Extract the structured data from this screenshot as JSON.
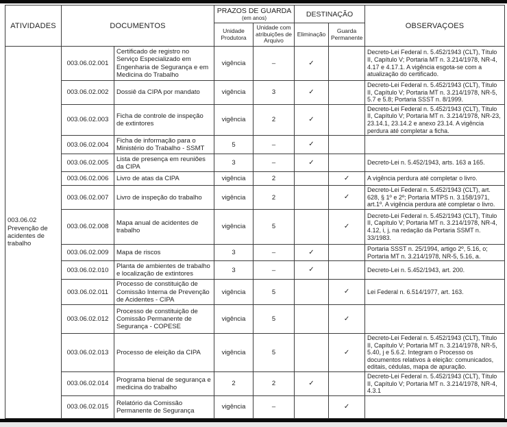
{
  "table": {
    "headers": {
      "atividades": "ATIVIDADES",
      "documentos": "DOCUMENTOS",
      "prazos_group": "PRAZOS DE GUARDA",
      "prazos_note": "(em anos)",
      "destinacao_group": "DESTINAÇÃO",
      "col_unidade_produtora": "Unidade Produtora",
      "col_unidade_arquivo": "Unidade com atribuições de Arquivo",
      "col_eliminacao": "Eliminação",
      "col_guarda_permanente": "Guarda Permanente",
      "observacoes": "OBSERVAÇOES"
    },
    "activity": {
      "code": "003.06.02",
      "label": "Prevenção de acidentes de trabalho"
    },
    "rows": [
      {
        "code": "003.06.02.001",
        "document": "Certificado de registro no Serviço Especializado em Engenharia de Segurança e em Medicina do Trabalho",
        "unidade_produtora": "vigência",
        "unidade_arquivo": "–",
        "eliminacao": "✓",
        "guarda_permanente": "",
        "observacoes": "Decreto-Lei Federal n. 5.452/1943 (CLT), Título II, Capítulo V; Portaria MT n. 3.214/1978, NR-4, 4.17 e 4.17.1. A vigência esgota-se com a atualização do certificado."
      },
      {
        "code": "003.06.02.002",
        "document": "Dossiê da CIPA por mandato",
        "unidade_produtora": "vigência",
        "unidade_arquivo": "3",
        "eliminacao": "✓",
        "guarda_permanente": "",
        "observacoes": "Decreto-Lei Federal n. 5.452/1943 (CLT), Título II, Capítulo V; Portaria MT n. 3.214/1978, NR-5, 5.7 e 5.8; Portaria SSST n. 8/1999."
      },
      {
        "code": "003.06.02.003",
        "document": "Ficha de controle de inspeção de extintores",
        "unidade_produtora": "vigência",
        "unidade_arquivo": "2",
        "eliminacao": "✓",
        "guarda_permanente": "",
        "observacoes": "Decreto-Lei Federal n. 5.452/1943 (CLT), Título II, Capítulo V; Portaria MT n. 3.214/1978, NR-23, 23.14.1, 23.14.2 e anexo 23.14. A vigência perdura até completar a ficha."
      },
      {
        "code": "003.06.02.004",
        "document": "Ficha de informação para o Ministério do Trabalho - SSMT",
        "unidade_produtora": "5",
        "unidade_arquivo": "–",
        "eliminacao": "✓",
        "guarda_permanente": "",
        "observacoes": ""
      },
      {
        "code": "003.06.02.005",
        "document": "Lista de presença em reuniões da CIPA",
        "unidade_produtora": "3",
        "unidade_arquivo": "–",
        "eliminacao": "✓",
        "guarda_permanente": "",
        "observacoes": "Decreto-Lei n. 5.452/1943, arts. 163 a 165."
      },
      {
        "code": "003.06.02.006",
        "document": "Livro de atas da CIPA",
        "unidade_produtora": "vigência",
        "unidade_arquivo": "2",
        "eliminacao": "",
        "guarda_permanente": "✓",
        "observacoes": "A vigência perdura até completar o livro."
      },
      {
        "code": "003.06.02.007",
        "document": "Livro de inspeção do trabalho",
        "unidade_produtora": "vigência",
        "unidade_arquivo": "2",
        "eliminacao": "",
        "guarda_permanente": "✓",
        "observacoes": "Decreto-Lei Federal n. 5.452/1943 (CLT), art. 628, § 1º e 2º; Portaria MTPS n. 3.158/1971, art.1º. A vigência perdura até completar o livro."
      },
      {
        "code": "003.06.02.008",
        "document": "Mapa anual de acidentes de trabalho",
        "unidade_produtora": "vigência",
        "unidade_arquivo": "5",
        "eliminacao": "",
        "guarda_permanente": "✓",
        "observacoes": "Decreto-Lei Federal n. 5.452/1943 (CLT), Título II, Capítulo V; Portaria MT n. 3.214/1978, NR-4, 4.12, i, j, na redação da Portaria SSMT n. 33/1983."
      },
      {
        "code": "003.06.02.009",
        "document": "Mapa de riscos",
        "unidade_produtora": "3",
        "unidade_arquivo": "–",
        "eliminacao": "✓",
        "guarda_permanente": "",
        "observacoes": "Portaria SSST n. 25/1994, artigo 2º, 5.16, o; Portaria MT n. 3.214/1978, NR-5, 5.16, a."
      },
      {
        "code": "003.06.02.010",
        "document": "Planta de ambientes de trabalho e localização de extintores",
        "unidade_produtora": "3",
        "unidade_arquivo": "–",
        "eliminacao": "✓",
        "guarda_permanente": "",
        "observacoes": "Decreto-Lei n. 5.452/1943, art. 200."
      },
      {
        "code": "003.06.02.011",
        "document": "Processo de constituição de Comissão Interna de Prevenção de Acidentes - CIPA",
        "unidade_produtora": "vigência",
        "unidade_arquivo": "5",
        "eliminacao": "",
        "guarda_permanente": "✓",
        "observacoes": "Lei Federal n. 6.514/1977, art. 163."
      },
      {
        "code": "003.06.02.012",
        "document": "Processo de constituição de Comissão Permanente de Segurança - COPESE",
        "unidade_produtora": "vigência",
        "unidade_arquivo": "5",
        "eliminacao": "",
        "guarda_permanente": "✓",
        "observacoes": ""
      },
      {
        "code": "003.06.02.013",
        "document": "Processo de eleição da CIPA",
        "unidade_produtora": "vigência",
        "unidade_arquivo": "5",
        "eliminacao": "",
        "guarda_permanente": "✓",
        "observacoes": "Decreto-Lei Federal n. 5.452/1943 (CLT), Título II, Capítulo V; Portaria MT n. 3.214/1978, NR-5, 5.40, j e 5.6.2. Integram o Processo os documentos relativos à eleição: comunicados, editais, cédulas, mapa de apuração."
      },
      {
        "code": "003.06.02.014",
        "document": "Programa bienal de segurança e medicina do trabalho",
        "unidade_produtora": "2",
        "unidade_arquivo": "2",
        "eliminacao": "✓",
        "guarda_permanente": "",
        "observacoes": "Decreto-Lei Federal n. 5.452/1943 (CLT), Título II, Capítulo V; Portaria MT n. 3.214/1978, NR-4, 4.3.1"
      },
      {
        "code": "003.06.02.015",
        "document": "Relatório da Comissão Permanente de Segurança",
        "unidade_produtora": "vigência",
        "unidade_arquivo": "–",
        "eliminacao": "",
        "guarda_permanente": "✓",
        "observacoes": ""
      }
    ]
  },
  "colors": {
    "border": "#3c3c3c",
    "heavy_rule": "#0a0a0a",
    "text": "#1f1f1f",
    "background": "#ffffff"
  }
}
